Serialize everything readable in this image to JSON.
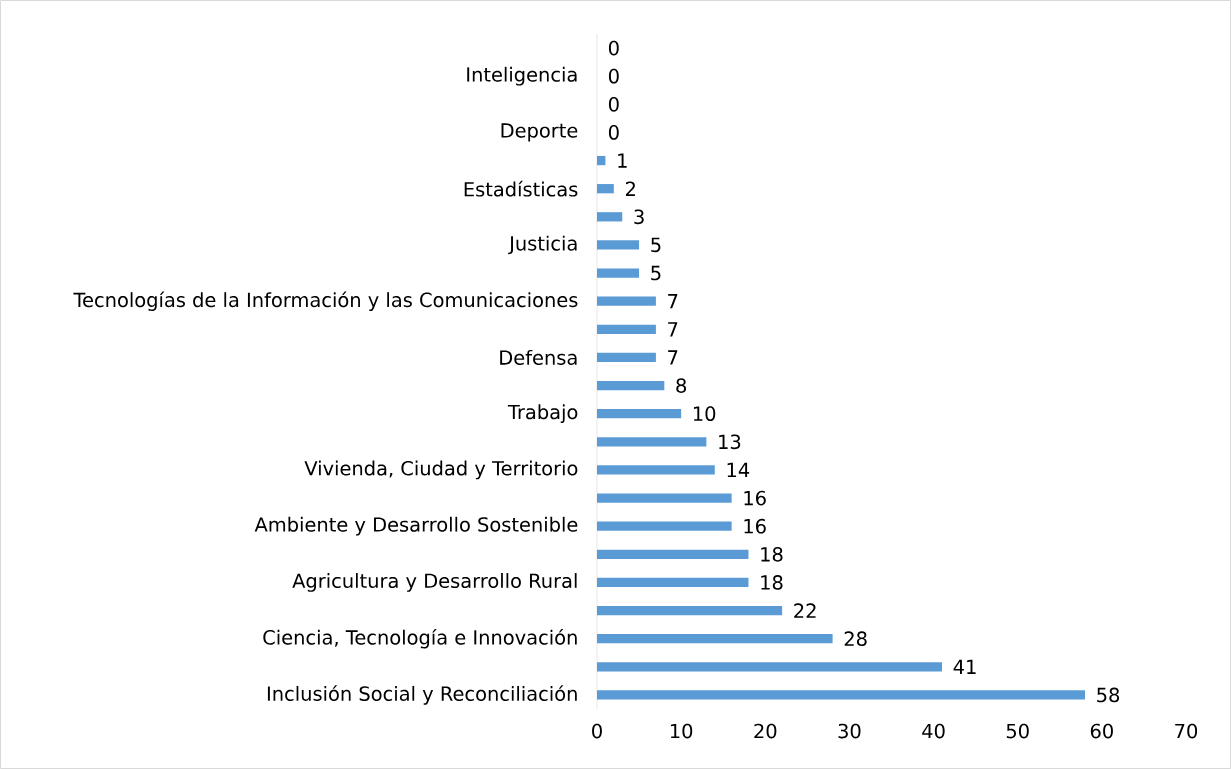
{
  "chart_data": {
    "type": "bar",
    "orientation": "horizontal",
    "categories": [
      null,
      "Inteligencia",
      null,
      "Deporte",
      null,
      "Estadísticas",
      null,
      "Justicia",
      null,
      "Tecnologías de la Información y las Comunicaciones",
      null,
      "Defensa",
      null,
      "Trabajo",
      null,
      "Vivienda, Ciudad y Territorio",
      null,
      "Ambiente y Desarrollo Sostenible",
      null,
      "Agricultura y Desarrollo Rural",
      null,
      "Ciencia, Tecnología e Innovación",
      null,
      "Inclusión Social y Reconciliación"
    ],
    "values": [
      0,
      0,
      0,
      0,
      1,
      2,
      3,
      5,
      5,
      7,
      7,
      7,
      8,
      10,
      13,
      14,
      16,
      16,
      18,
      18,
      22,
      28,
      41,
      58
    ],
    "color": "#5b9bd5",
    "xlim": [
      0,
      70
    ],
    "xticks": [
      0,
      10,
      20,
      30,
      40,
      50,
      60,
      70
    ],
    "data_labels": true,
    "grid": false
  }
}
